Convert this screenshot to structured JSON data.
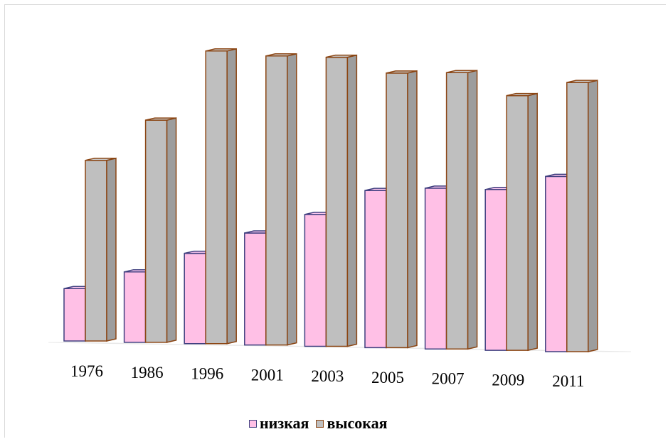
{
  "chart_data": {
    "type": "bar",
    "categories": [
      "1976",
      "1986",
      "1996",
      "2001",
      "2003",
      "2005",
      "2007",
      "2009",
      "2011"
    ],
    "series": [
      {
        "name": "низкая",
        "values": [
          29,
          39,
          50,
          62,
          73,
          87,
          89,
          89,
          97
        ],
        "color": "#ffc0e6",
        "edge": "#3f3f7f"
      },
      {
        "name": "высокая",
        "values": [
          100,
          123,
          162,
          160,
          160,
          152,
          153,
          141,
          149
        ],
        "color": "#bfbfbf",
        "edge": "#8b4513"
      }
    ],
    "ylim": [
      0,
      175
    ],
    "grid": false,
    "legend_position": "bottom"
  }
}
